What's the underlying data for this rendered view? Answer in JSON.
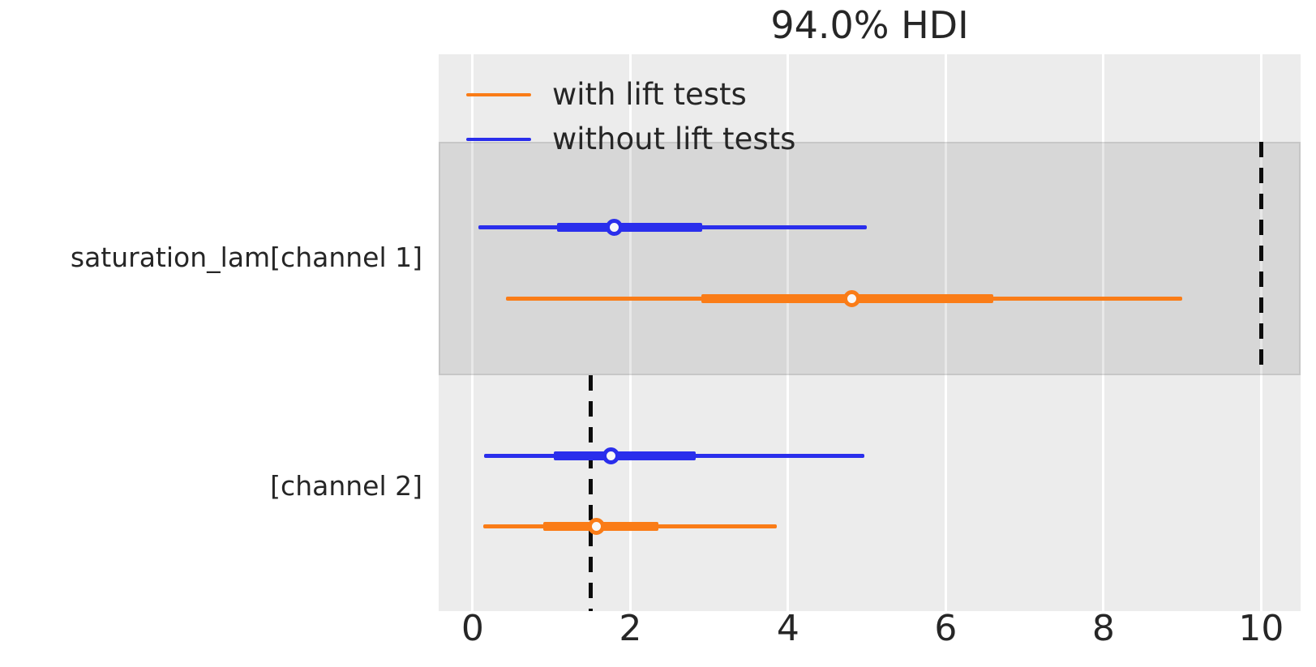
{
  "title": "94.0% HDI",
  "legend": {
    "items": [
      {
        "label": "with lift tests",
        "color": "#fa7c17"
      },
      {
        "label": "without lift tests",
        "color": "#2a2eec"
      }
    ]
  },
  "colors": {
    "plot_background": "#ececec",
    "shaded_band": "#d5d5d5",
    "gridline": "#ffffff",
    "reference_line": "#0c0c0c",
    "text": "#262626",
    "orange_series": "#fa7c17",
    "blue_series": "#2a2eec",
    "marker_fill": "#f8f8f8"
  },
  "chart_data": {
    "type": "forest",
    "title": "94.0% HDI",
    "hdi_probability": "94.0%",
    "xlim": [
      -0.43,
      10.5
    ],
    "xticks": [
      0,
      2,
      4,
      6,
      8,
      10
    ],
    "grid": "vertical-white-gridlines",
    "legend_position": "upper-left",
    "series_names": [
      "with lift tests",
      "without lift tests"
    ],
    "rows": [
      {
        "label": "saturation_lam[channel 1]",
        "shaded": true,
        "reference_line": 10.0,
        "estimates": [
          {
            "series": "without lift tests",
            "color": "#2a2eec",
            "hdi_94": [
              0.07,
              5.0
            ],
            "iqr": [
              1.07,
              2.91
            ],
            "median": 1.8
          },
          {
            "series": "with lift tests",
            "color": "#fa7c17",
            "hdi_94": [
              0.42,
              9.0
            ],
            "iqr": [
              2.9,
              6.6
            ],
            "median": 4.81
          }
        ]
      },
      {
        "label": "[channel 2]",
        "shaded": false,
        "reference_line": 1.5,
        "estimates": [
          {
            "series": "without lift tests",
            "color": "#2a2eec",
            "hdi_94": [
              0.15,
              4.97
            ],
            "iqr": [
              1.03,
              2.83
            ],
            "median": 1.75
          },
          {
            "series": "with lift tests",
            "color": "#fa7c17",
            "hdi_94": [
              0.14,
              3.86
            ],
            "iqr": [
              0.9,
              2.36
            ],
            "median": 1.57
          }
        ]
      }
    ]
  }
}
